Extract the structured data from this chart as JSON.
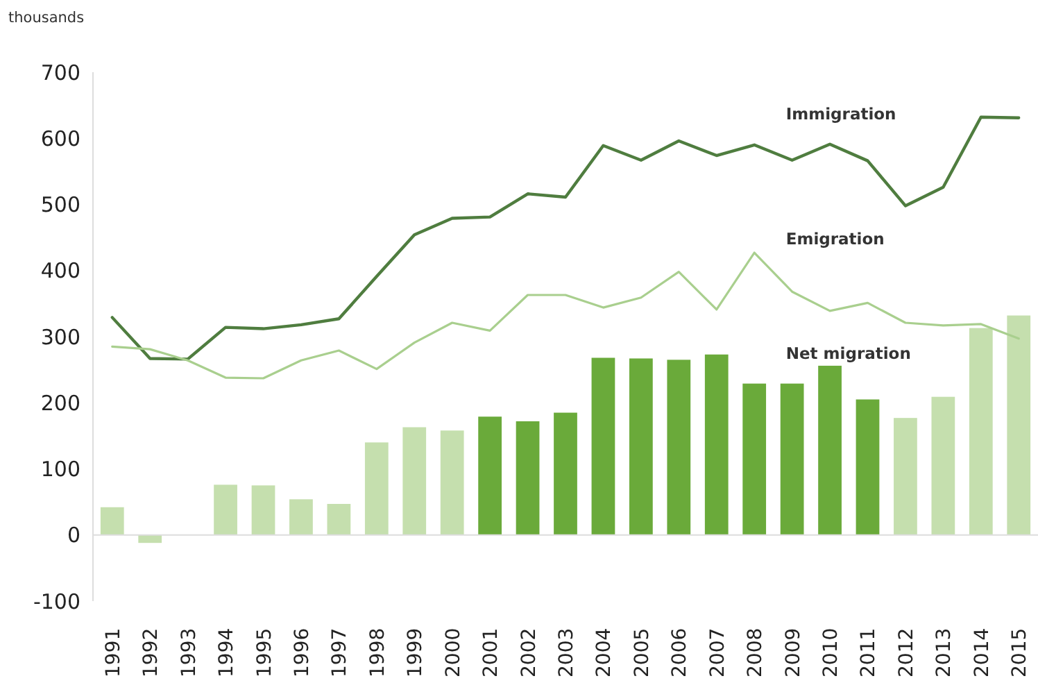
{
  "chart_data": {
    "type": "bar",
    "ylabel": "thousands",
    "categories": [
      "1991",
      "1992",
      "1993",
      "1994",
      "1995",
      "1996",
      "1997",
      "1998",
      "1999",
      "2000",
      "2001",
      "2002",
      "2003",
      "2004",
      "2005",
      "2006",
      "2007",
      "2008",
      "2009",
      "2010",
      "2011",
      "2012",
      "2013",
      "2014",
      "2015"
    ],
    "ylim": [
      -100,
      700
    ],
    "yticks": [
      -100,
      0,
      100,
      200,
      300,
      400,
      500,
      600,
      700
    ],
    "series": [
      {
        "name": "Immigration",
        "type": "line",
        "color": "#4f7d3f",
        "values": [
          329,
          267,
          266,
          314,
          312,
          318,
          327,
          391,
          454,
          479,
          481,
          516,
          511,
          589,
          567,
          596,
          574,
          590,
          567,
          591,
          566,
          498,
          526,
          632,
          631
        ]
      },
      {
        "name": "Emigration",
        "type": "line",
        "color": "#a9cf8e",
        "values": [
          285,
          281,
          264,
          238,
          237,
          264,
          279,
          251,
          291,
          321,
          309,
          363,
          363,
          344,
          359,
          398,
          341,
          427,
          368,
          339,
          351,
          321,
          317,
          319,
          297
        ]
      },
      {
        "name": "Net migration",
        "colors": [
          "#c5dfae",
          "#c5dfae",
          null,
          "#c5dfae",
          "#c5dfae",
          "#c5dfae",
          "#c5dfae",
          "#c5dfae",
          "#c5dfae",
          "#c5dfae",
          "#6aaa3a",
          "#6aaa3a",
          "#6aaa3a",
          "#6aaa3a",
          "#6aaa3a",
          "#6aaa3a",
          "#6aaa3a",
          "#6aaa3a",
          "#6aaa3a",
          "#6aaa3a",
          "#6aaa3a",
          "#c5dfae",
          "#c5dfae",
          "#c5dfae",
          "#c5dfae"
        ],
        "values": [
          42,
          -12,
          null,
          76,
          75,
          54,
          47,
          140,
          163,
          158,
          179,
          172,
          185,
          268,
          267,
          265,
          273,
          229,
          229,
          256,
          205,
          177,
          209,
          313,
          332
        ]
      }
    ]
  }
}
